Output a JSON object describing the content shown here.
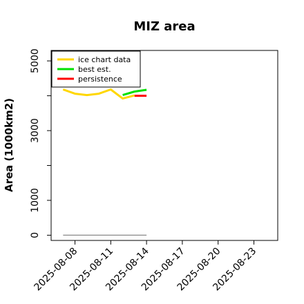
{
  "chart_data": {
    "type": "line",
    "title": "MIZ area",
    "xlabel": "",
    "ylabel": "Area (1000km2)",
    "x_ticks": [
      "2025-08-08",
      "2025-08-11",
      "2025-08-14",
      "2025-08-17",
      "2025-08-20",
      "2025-08-23"
    ],
    "y_ticks": [
      0,
      1000,
      3000,
      5000
    ],
    "xlim": [
      "2025-08-06",
      "2025-08-25"
    ],
    "ylim": [
      -150,
      5300
    ],
    "legend_position": "top-left",
    "grid": false,
    "series": [
      {
        "name": "ice chart data",
        "color": "#FFD700",
        "points": [
          [
            "2025-08-07",
            4180
          ],
          [
            "2025-08-08",
            4060
          ],
          [
            "2025-08-09",
            4020
          ],
          [
            "2025-08-10",
            4060
          ],
          [
            "2025-08-11",
            4180
          ],
          [
            "2025-08-12",
            3920
          ],
          [
            "2025-08-13",
            4010
          ]
        ]
      },
      {
        "name": "best est.",
        "color": "#00E000",
        "points": [
          [
            "2025-08-12",
            4020
          ],
          [
            "2025-08-13",
            4120
          ],
          [
            "2025-08-14",
            4170
          ]
        ]
      },
      {
        "name": "persistence",
        "color": "#FF0000",
        "points": [
          [
            "2025-08-13",
            4000
          ],
          [
            "2025-08-14",
            4000
          ]
        ]
      },
      {
        "color": "#888888",
        "points": [
          [
            "2025-08-07",
            0
          ],
          [
            "2025-08-14",
            0
          ]
        ]
      }
    ]
  }
}
